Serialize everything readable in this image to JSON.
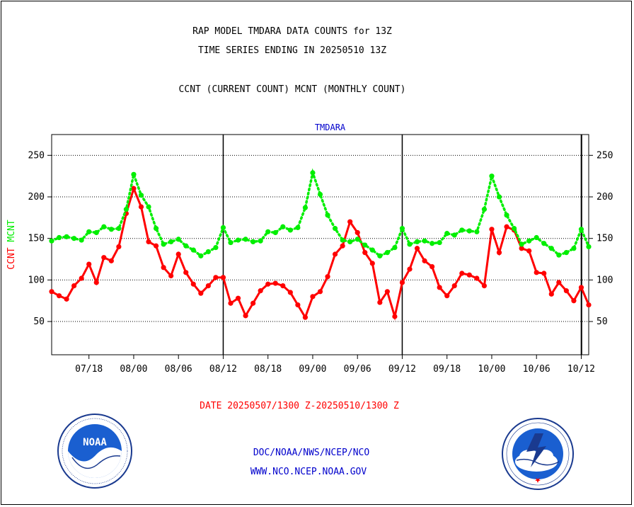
{
  "header": {
    "line1": "RAP MODEL TMDARA DATA COUNTS for 13Z",
    "line2": "TIME SERIES ENDING IN 20250510 13Z",
    "line3": "CCNT (CURRENT COUNT) MCNT (MONTHLY COUNT)"
  },
  "footer": {
    "date_range": "DATE 20250507/1300 Z-20250510/1300 Z",
    "org_path": "DOC/NOAA/NWS/NCEP/NCO",
    "website": "WWW.NCO.NCEP.NOAA.GOV",
    "noaa_logo_text": "NOAA",
    "nws_logo_text": "NATIONAL WEATHER SERVICE"
  },
  "colors": {
    "ccnt": "#ff0000",
    "mcnt": "#00ee00",
    "station": "#0000cc",
    "footer_link": "#0000cc",
    "date_text": "#ff0000"
  },
  "chart_data": {
    "type": "line",
    "title": "TMDARA",
    "ylabel_left": [
      {
        "text": "CCNT",
        "color": "#ff0000"
      },
      {
        "text": "MCNT",
        "color": "#00ee00"
      }
    ],
    "ylim": [
      10,
      275
    ],
    "yticks": [
      50,
      100,
      150,
      200,
      250
    ],
    "grid": true,
    "x_tick_labels": [
      "07/18",
      "08/00",
      "08/06",
      "08/12",
      "08/18",
      "09/00",
      "09/06",
      "09/12",
      "09/18",
      "10/00",
      "10/06",
      "10/12"
    ],
    "x_tick_hours": [
      5,
      11,
      17,
      23,
      29,
      35,
      41,
      47,
      53,
      59,
      65,
      71
    ],
    "x_range_hours": [
      0,
      72
    ],
    "day_boundaries_hours": [
      23,
      47,
      71
    ],
    "series": [
      {
        "name": "CCNT",
        "color": "#ff0000",
        "style": "solid",
        "values": [
          86,
          81,
          77,
          93,
          102,
          119,
          97,
          127,
          123,
          140,
          180,
          210,
          188,
          146,
          141,
          115,
          105,
          131,
          109,
          95,
          84,
          93,
          103,
          103,
          72,
          78,
          57,
          72,
          87,
          95,
          96,
          93,
          85,
          70,
          55,
          80,
          86,
          104,
          131,
          141,
          170,
          157,
          133,
          120,
          73,
          86,
          56,
          97,
          113,
          138,
          123,
          116,
          91,
          81,
          93,
          108,
          106,
          102,
          93,
          161,
          133,
          164,
          160,
          138,
          135,
          109,
          108,
          83,
          97,
          87,
          75,
          91,
          70
        ]
      },
      {
        "name": "MCNT",
        "color": "#00ee00",
        "style": "dotted",
        "values": [
          147,
          151,
          152,
          150,
          148,
          158,
          157,
          164,
          161,
          162,
          185,
          227,
          202,
          188,
          162,
          143,
          146,
          149,
          141,
          136,
          129,
          134,
          139,
          163,
          145,
          148,
          149,
          146,
          147,
          158,
          157,
          164,
          160,
          163,
          187,
          229,
          203,
          178,
          162,
          148,
          146,
          149,
          142,
          136,
          129,
          133,
          139,
          162,
          143,
          146,
          147,
          144,
          145,
          156,
          154,
          160,
          159,
          158,
          185,
          225,
          200,
          178,
          162,
          143,
          147,
          151,
          144,
          138,
          130,
          133,
          138,
          161,
          140
        ]
      }
    ]
  }
}
